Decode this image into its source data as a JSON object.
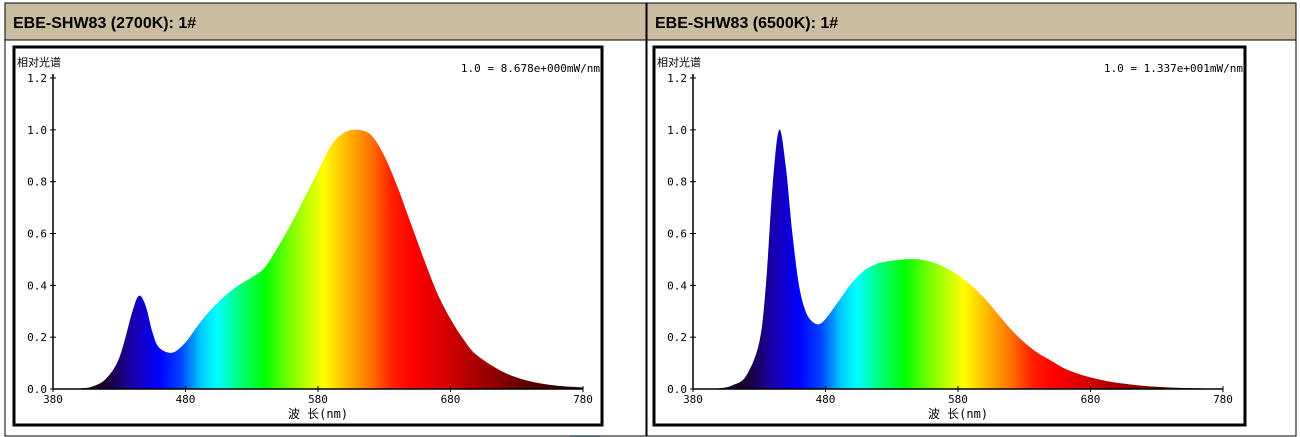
{
  "colors": {
    "header_bg": "#cbbd9f",
    "watermark": "#7fd3f5",
    "frame": "#000000"
  },
  "chart_data": [
    {
      "type": "area",
      "title": "EBE-SHW83 (2700K): 1#",
      "ylabel": "相对光谱",
      "xlabel": "波 长(nm)",
      "scale_note": "1.0 = 8.678e+000mW/nm",
      "xlim": [
        380,
        780
      ],
      "ylim": [
        0,
        1.2
      ],
      "x_ticks": [
        "380",
        "480",
        "580",
        "680",
        "780"
      ],
      "y_ticks": [
        "0.0",
        "0.2",
        "0.4",
        "0.6",
        "0.8",
        "1.0",
        "1.2"
      ],
      "x": [
        380,
        400,
        410,
        420,
        430,
        440,
        445,
        450,
        455,
        460,
        470,
        480,
        490,
        500,
        510,
        520,
        530,
        540,
        550,
        560,
        570,
        580,
        590,
        600,
        610,
        620,
        630,
        640,
        650,
        660,
        670,
        680,
        690,
        700,
        720,
        740,
        760,
        780
      ],
      "y": [
        0.0,
        0.002,
        0.01,
        0.04,
        0.12,
        0.3,
        0.36,
        0.32,
        0.22,
        0.16,
        0.14,
        0.18,
        0.25,
        0.31,
        0.36,
        0.4,
        0.43,
        0.47,
        0.55,
        0.64,
        0.74,
        0.84,
        0.94,
        0.99,
        1.0,
        0.98,
        0.9,
        0.78,
        0.64,
        0.5,
        0.37,
        0.27,
        0.19,
        0.13,
        0.065,
        0.03,
        0.013,
        0.006
      ]
    },
    {
      "type": "area",
      "title": "EBE-SHW83 (6500K): 1#",
      "ylabel": "相对光谱",
      "xlabel": "波 长(nm)",
      "scale_note": "1.0 = 1.337e+001mW/nm",
      "xlim": [
        380,
        780
      ],
      "ylim": [
        0,
        1.2
      ],
      "x_ticks": [
        "380",
        "480",
        "580",
        "680",
        "780"
      ],
      "y_ticks": [
        "0.0",
        "0.2",
        "0.4",
        "0.6",
        "0.8",
        "1.0",
        "1.2"
      ],
      "x": [
        380,
        400,
        410,
        420,
        430,
        435,
        440,
        445,
        450,
        455,
        460,
        465,
        470,
        475,
        480,
        490,
        500,
        510,
        520,
        530,
        540,
        550,
        560,
        570,
        580,
        590,
        600,
        610,
        620,
        630,
        640,
        650,
        660,
        670,
        680,
        690,
        700,
        720,
        740,
        760,
        780
      ],
      "y": [
        0.0,
        0.003,
        0.015,
        0.05,
        0.18,
        0.4,
        0.78,
        1.0,
        0.86,
        0.6,
        0.4,
        0.3,
        0.26,
        0.25,
        0.27,
        0.34,
        0.41,
        0.46,
        0.485,
        0.495,
        0.5,
        0.5,
        0.49,
        0.47,
        0.44,
        0.4,
        0.35,
        0.29,
        0.23,
        0.18,
        0.14,
        0.11,
        0.08,
        0.06,
        0.045,
        0.033,
        0.024,
        0.012,
        0.006,
        0.003,
        0.0
      ]
    }
  ]
}
